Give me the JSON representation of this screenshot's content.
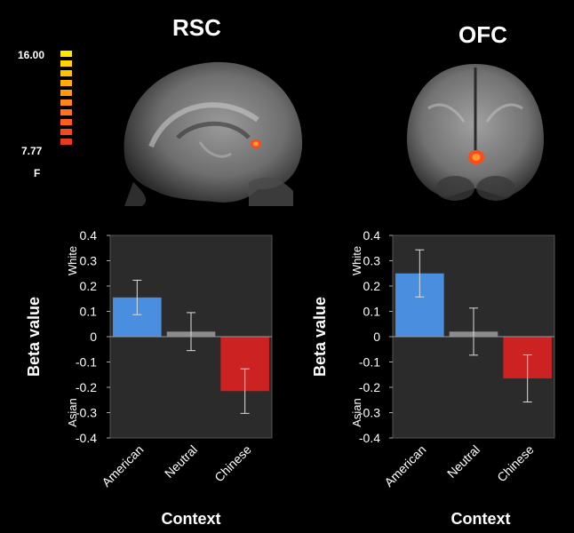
{
  "figure": {
    "rsc_title": "RSC",
    "ofc_title": "OFC",
    "colorbar": {
      "max_label": "16.00",
      "min_label": "7.77",
      "stat_label": "F",
      "colors": [
        "#ffe600",
        "#ffd400",
        "#ffc200",
        "#ffae00",
        "#ff9a10",
        "#ff8618",
        "#ff7020",
        "#ff5c20",
        "#f24a1e",
        "#e83a1c"
      ]
    },
    "brain_images": [
      {
        "name": "sagittal-brain-rsc"
      },
      {
        "name": "coronal-brain-ofc"
      }
    ]
  },
  "chart_data": [
    {
      "type": "bar",
      "title": "",
      "categories": [
        "American",
        "Neutral",
        "Chinese"
      ],
      "values": [
        0.155,
        0.02,
        -0.215
      ],
      "errors": [
        0.068,
        0.075,
        0.088
      ],
      "colors": [
        "#4a8ee0",
        "#8c8c8c",
        "#cc2222"
      ],
      "xlabel": "Context",
      "ylabel": "Beta value",
      "ylim": [
        -0.4,
        0.4
      ],
      "yticks": [
        0.4,
        0.3,
        0.2,
        0.1,
        0,
        -0.1,
        -0.2,
        -0.3,
        -0.4
      ],
      "ytick_labels": [
        "0.4",
        "0.3",
        "0.2",
        "0.1",
        "0",
        "-0.1",
        "-0.2",
        "-0.3",
        "-0.4"
      ],
      "top_side_label": "White",
      "bottom_side_label": "Asian"
    },
    {
      "type": "bar",
      "title": "",
      "categories": [
        "American",
        "Neutral",
        "Chinese"
      ],
      "values": [
        0.25,
        0.02,
        -0.165
      ],
      "errors": [
        0.093,
        0.093,
        0.093
      ],
      "colors": [
        "#4a8ee0",
        "#8c8c8c",
        "#cc2222"
      ],
      "xlabel": "Context",
      "ylabel": "Beta value",
      "ylim": [
        -0.4,
        0.4
      ],
      "yticks": [
        0.4,
        0.3,
        0.2,
        0.1,
        0,
        -0.1,
        -0.2,
        -0.3,
        -0.4
      ],
      "ytick_labels": [
        "0.4",
        "0.3",
        "0.2",
        "0.1",
        "0",
        "-0.1",
        "-0.2",
        "-0.3",
        "-0.4"
      ],
      "top_side_label": "White",
      "bottom_side_label": "Asian"
    }
  ]
}
